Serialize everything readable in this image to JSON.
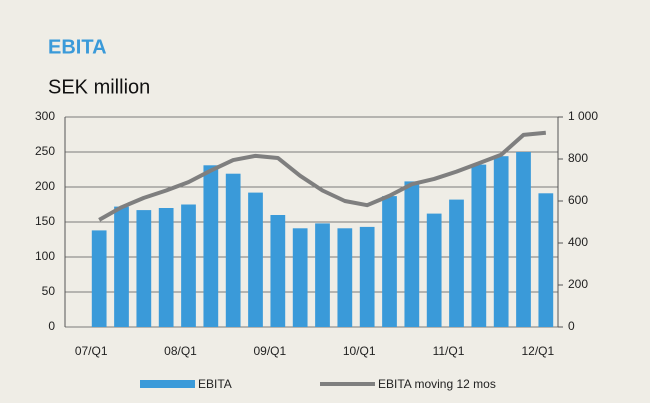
{
  "chart_data": {
    "type": "bar",
    "title": "EBITA",
    "subtitle": "SEK million",
    "categories": [
      "07/Q1",
      null,
      null,
      null,
      "08/Q1",
      null,
      null,
      null,
      "09/Q1",
      null,
      null,
      null,
      "10/Q1",
      null,
      null,
      null,
      "11/Q1",
      null,
      null,
      null,
      "12/Q1"
    ],
    "series": [
      {
        "name": "EBITA",
        "type": "bar",
        "color": "#3a9ad9",
        "axis": "y",
        "values": [
          138,
          172,
          167,
          170,
          175,
          231,
          219,
          192,
          160,
          141,
          148,
          141,
          143,
          187,
          208,
          162,
          182,
          232,
          244,
          250,
          191
        ]
      },
      {
        "name": "EBITA moving 12 mos",
        "type": "line",
        "color": "#7f7f7f",
        "axis": "y2",
        "values": [
          510,
          570,
          615,
          650,
          690,
          745,
          795,
          815,
          805,
          720,
          650,
          600,
          580,
          625,
          680,
          705,
          740,
          780,
          820,
          915,
          925
        ]
      }
    ],
    "ylim": [
      0,
      300
    ],
    "yticks": [
      0,
      50,
      100,
      150,
      200,
      250,
      300
    ],
    "y2lim": [
      0,
      1000
    ],
    "y2ticks": [
      0,
      200,
      400,
      600,
      800,
      {
        "value": 1000,
        "label": "1 000"
      }
    ],
    "grid": true,
    "legend": "bottom"
  }
}
